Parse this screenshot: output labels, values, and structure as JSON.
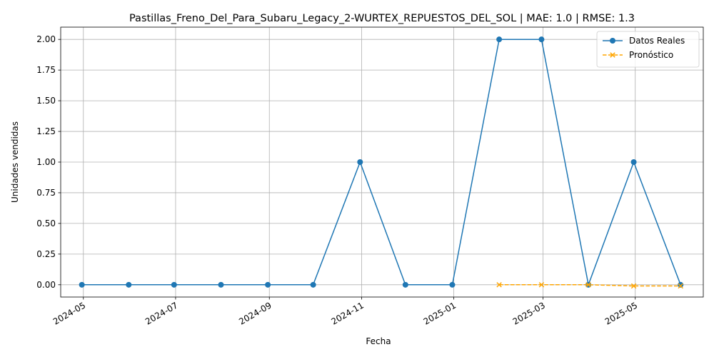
{
  "chart_data": {
    "type": "line",
    "title": "Pastillas_Freno_Del_Para_Subaru_Legacy_2-WURTEX_REPUESTOS_DEL_SOL | MAE: 1.0 | RMSE: 1.3",
    "xlabel": "Fecha",
    "ylabel": "Unidades vendidas",
    "ylim": [
      -0.1,
      2.1
    ],
    "xlim": [
      "2024-04-16",
      "2025-06-15"
    ],
    "grid": true,
    "legend_position": "top-right",
    "x_ticks": [
      "2024-05",
      "2024-07",
      "2024-09",
      "2024-11",
      "2025-01",
      "2025-03",
      "2025-05"
    ],
    "y_ticks": [
      "0.00",
      "0.25",
      "0.50",
      "0.75",
      "1.00",
      "1.25",
      "1.50",
      "1.75",
      "2.00"
    ],
    "series": [
      {
        "name": "Datos Reales",
        "color": "#1f77b4",
        "line_style": "solid",
        "marker": "circle",
        "x": [
          "2024-04-30",
          "2024-05-31",
          "2024-06-30",
          "2024-07-31",
          "2024-08-31",
          "2024-09-30",
          "2024-10-31",
          "2024-11-30",
          "2024-12-31",
          "2025-01-31",
          "2025-02-28",
          "2025-03-31",
          "2025-04-30",
          "2025-05-31"
        ],
        "values": [
          0,
          0,
          0,
          0,
          0,
          0,
          1,
          0,
          0,
          2,
          2,
          0,
          1,
          0
        ]
      },
      {
        "name": "Pronóstico",
        "color": "#ffa500",
        "line_style": "dashed",
        "marker": "x",
        "x": [
          "2025-01-31",
          "2025-02-28",
          "2025-03-31",
          "2025-04-30",
          "2025-05-31"
        ],
        "values": [
          0.0,
          0.0,
          0.0,
          -0.01,
          -0.01
        ]
      }
    ]
  }
}
